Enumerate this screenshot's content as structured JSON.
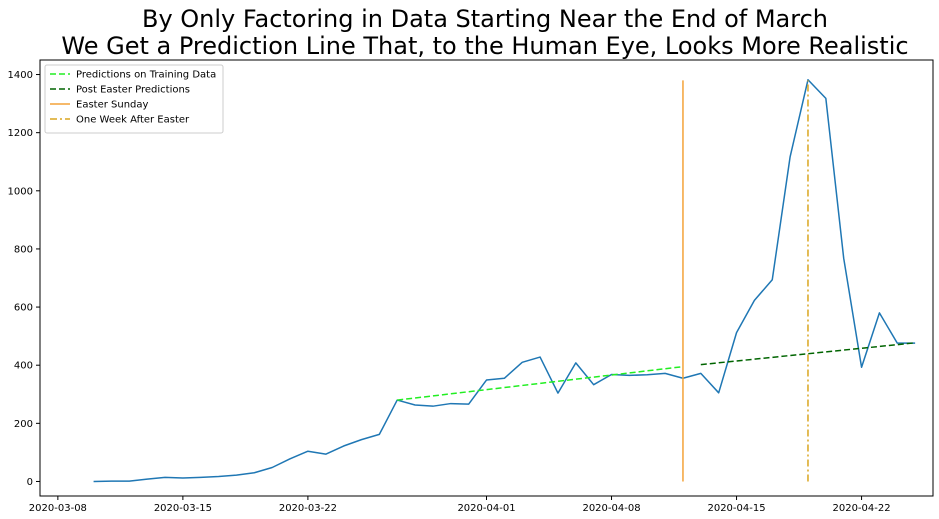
{
  "chart_data": {
    "type": "line",
    "title_lines": [
      "By Only Factoring in Data Starting Near the End of March",
      "We Get a Prediction Line That, to the Human Eye, Looks More Realistic"
    ],
    "xlabel": "",
    "ylabel": "",
    "x_ticks": [
      "2020-03-08",
      "2020-03-15",
      "2020-03-22",
      "2020-04-01",
      "2020-04-08",
      "2020-04-15",
      "2020-04-22"
    ],
    "y_ticks": [
      "0",
      "200",
      "400",
      "600",
      "800",
      "1000",
      "1200",
      "1400"
    ],
    "xlim": [
      "2020-03-07",
      "2020-04-26"
    ],
    "ylim": [
      -50,
      1450
    ],
    "grid": false,
    "legend_position": "top-left",
    "series": [
      {
        "role": "observed",
        "color": "#1f77b4",
        "style": "solid",
        "x": [
          "2020-03-10",
          "2020-03-11",
          "2020-03-12",
          "2020-03-13",
          "2020-03-14",
          "2020-03-15",
          "2020-03-16",
          "2020-03-17",
          "2020-03-18",
          "2020-03-19",
          "2020-03-20",
          "2020-03-21",
          "2020-03-22",
          "2020-03-23",
          "2020-03-24",
          "2020-03-25",
          "2020-03-26",
          "2020-03-27",
          "2020-03-28",
          "2020-03-29",
          "2020-03-30",
          "2020-03-31",
          "2020-04-01",
          "2020-04-02",
          "2020-04-03",
          "2020-04-04",
          "2020-04-05",
          "2020-04-06",
          "2020-04-07",
          "2020-04-08",
          "2020-04-09",
          "2020-04-10",
          "2020-04-11",
          "2020-04-12",
          "2020-04-13",
          "2020-04-14",
          "2020-04-15",
          "2020-04-16",
          "2020-04-17",
          "2020-04-18",
          "2020-04-19",
          "2020-04-20",
          "2020-04-21",
          "2020-04-22",
          "2020-04-23",
          "2020-04-24",
          "2020-04-25"
        ],
        "y": [
          0,
          1,
          1,
          8,
          14,
          12,
          14,
          17,
          22,
          30,
          48,
          78,
          104,
          94,
          122,
          144,
          162,
          280,
          263,
          259,
          268,
          266,
          349,
          355,
          410,
          428,
          304,
          408,
          333,
          368,
          365,
          367,
          372,
          355,
          372,
          305,
          512,
          623,
          694,
          1117,
          1382,
          1318,
          768,
          393,
          580,
          476,
          476
        ]
      },
      {
        "name": "Predictions on Training Data",
        "color": "#22ee22",
        "style": "dashed",
        "x": [
          "2020-03-27",
          "2020-04-12"
        ],
        "y": [
          280,
          395
        ]
      },
      {
        "name": "Post Easter Predictions",
        "color": "#006400",
        "style": "dashed",
        "x": [
          "2020-04-13",
          "2020-04-25"
        ],
        "y": [
          402,
          477
        ]
      },
      {
        "name": "Easter Sunday",
        "color": "#f4a238",
        "style": "solid",
        "x": [
          "2020-04-12",
          "2020-04-12"
        ],
        "y": [
          0,
          1380
        ]
      },
      {
        "name": "One Week After Easter",
        "color": "#daa520",
        "style": "dashdot",
        "x": [
          "2020-04-19",
          "2020-04-19"
        ],
        "y": [
          0,
          1380
        ]
      }
    ]
  }
}
